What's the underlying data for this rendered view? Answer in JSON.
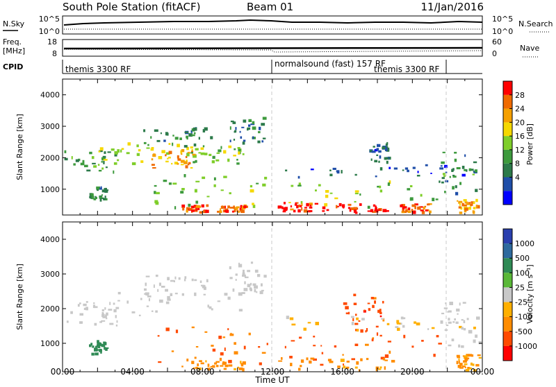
{
  "header": {
    "station": "South Pole Station (fitACF)",
    "beam": "Beam 01",
    "date": "11/Jan/2016"
  },
  "noise_panel": {
    "left_label": "N.Sky",
    "left_ticks": [
      "10^5",
      "10^0"
    ],
    "right_ticks": [
      "10^5",
      "10^0"
    ],
    "right_label": "N.Search"
  },
  "freq_panel": {
    "left_label_line1": "Freq.",
    "left_label_line2": "[MHz]",
    "left_ticks": [
      "18",
      "8"
    ],
    "right_ticks": [
      "60",
      "0"
    ],
    "right_label": "Nave"
  },
  "cpid": {
    "label": "CPID",
    "segments": [
      "themis 3300 RF",
      "normalsound (fast) 157 RF",
      "themis 3300 RF"
    ]
  },
  "x_axis": {
    "label": "Time UT",
    "ticks": [
      "00:00",
      "04:00",
      "08:00",
      "12:00",
      "16:00",
      "20:00",
      "00:00"
    ]
  },
  "power_scale": {
    "label": "Power [dB]",
    "ticks": [
      "28",
      "24",
      "20",
      "16",
      "12",
      "8",
      "4"
    ],
    "colors": [
      "#0000ff",
      "#1f4ea8",
      "#2c7a4a",
      "#3d9a3d",
      "#7fce2a",
      "#f5d800",
      "#f5a000",
      "#f06a00",
      "#ff0000"
    ]
  },
  "velocity_scale": {
    "label": "Velocity [m s⁻¹]",
    "ticks": [
      "1000",
      "500",
      "100",
      "25",
      "-25",
      "-100",
      "-500",
      "-1000"
    ],
    "colors": [
      "#2a3fae",
      "#2e6a9e",
      "#2f8a55",
      "#5ab838",
      "#c8c8c8",
      "#ffb000",
      "#ff8c00",
      "#ff4a00",
      "#ff0000"
    ]
  },
  "chart_data": [
    {
      "type": "heatmap",
      "title": "Power",
      "xlabel": "Time UT",
      "ylabel": "Slant Range [km]",
      "y_ticks": [
        1000,
        2000,
        3000,
        4000
      ],
      "ylim": [
        180,
        4500
      ],
      "xlim_hours": [
        0,
        24
      ],
      "colorbar_label": "Power [dB]",
      "colorbar_range": [
        0,
        30
      ],
      "regions": [
        {
          "t0": 0.1,
          "t1": 3.2,
          "r0": 1500,
          "r1": 2300,
          "v": 12
        },
        {
          "t0": 2.0,
          "t1": 7.5,
          "r0": 1800,
          "r1": 2500,
          "v": 16
        },
        {
          "t0": 5.0,
          "t1": 7.5,
          "r0": 1700,
          "r1": 2300,
          "v": 22
        },
        {
          "t0": 7.0,
          "t1": 10.5,
          "r0": 1800,
          "r1": 2400,
          "v": 14
        },
        {
          "t0": 4.5,
          "t1": 8.5,
          "r0": 2400,
          "r1": 3000,
          "v": 10
        },
        {
          "t0": 9.5,
          "t1": 11.5,
          "r0": 2500,
          "r1": 3400,
          "v": 8
        },
        {
          "t0": 1.5,
          "t1": 2.5,
          "r0": 700,
          "r1": 1100,
          "v": 8
        },
        {
          "t0": 5.0,
          "t1": 11.8,
          "r0": 400,
          "r1": 1500,
          "v": 14
        },
        {
          "t0": 6.8,
          "t1": 8.2,
          "r0": 300,
          "r1": 520,
          "v": 26
        },
        {
          "t0": 8.8,
          "t1": 10.4,
          "r0": 300,
          "r1": 520,
          "v": 26
        },
        {
          "t0": 12.0,
          "t1": 21.5,
          "r0": 400,
          "r1": 1300,
          "v": 14
        },
        {
          "t0": 12.3,
          "t1": 14.5,
          "r0": 300,
          "r1": 600,
          "v": 26
        },
        {
          "t0": 14.8,
          "t1": 18.8,
          "r0": 280,
          "r1": 560,
          "v": 28
        },
        {
          "t0": 19.2,
          "t1": 21.0,
          "r0": 300,
          "r1": 560,
          "v": 26
        },
        {
          "t0": 12.5,
          "t1": 23.8,
          "r0": 1400,
          "r1": 1800,
          "v": 6
        },
        {
          "t0": 17.5,
          "t1": 18.6,
          "r0": 1900,
          "r1": 2500,
          "v": 6
        },
        {
          "t0": 21.5,
          "t1": 23.8,
          "r0": 900,
          "r1": 2200,
          "v": 10
        },
        {
          "t0": 22.5,
          "t1": 23.9,
          "r0": 250,
          "r1": 700,
          "v": 22
        }
      ]
    },
    {
      "type": "heatmap",
      "title": "Velocity",
      "xlabel": "Time UT",
      "ylabel": "Slant Range [km]",
      "y_ticks": [
        1000,
        2000,
        3000,
        4000
      ],
      "ylim": [
        180,
        4500
      ],
      "xlim_hours": [
        0,
        24
      ],
      "colorbar_label": "Velocity [m s⁻¹]",
      "colorbar_range": [
        -1000,
        1000
      ],
      "regions": [
        {
          "t0": 0.1,
          "t1": 3.2,
          "r0": 1500,
          "r1": 2300,
          "v": 0
        },
        {
          "t0": 2.0,
          "t1": 10.5,
          "r0": 1800,
          "r1": 2500,
          "v": 0
        },
        {
          "t0": 4.5,
          "t1": 8.5,
          "r0": 2400,
          "r1": 3000,
          "v": 0
        },
        {
          "t0": 9.5,
          "t1": 11.5,
          "r0": 2500,
          "r1": 3400,
          "v": 0
        },
        {
          "t0": 1.5,
          "t1": 2.5,
          "r0": 700,
          "r1": 1100,
          "v": 150
        },
        {
          "t0": 5.0,
          "t1": 11.8,
          "r0": 400,
          "r1": 1500,
          "v": -300
        },
        {
          "t0": 6.8,
          "t1": 10.4,
          "r0": 280,
          "r1": 520,
          "v": -100
        },
        {
          "t0": 12.0,
          "t1": 21.5,
          "r0": 400,
          "r1": 1300,
          "v": -400
        },
        {
          "t0": 12.3,
          "t1": 18.8,
          "r0": 250,
          "r1": 600,
          "v": -80
        },
        {
          "t0": 16.0,
          "t1": 18.5,
          "r0": 1300,
          "r1": 2500,
          "v": -500
        },
        {
          "t0": 12.5,
          "t1": 23.8,
          "r0": 1400,
          "r1": 1800,
          "v": -30
        },
        {
          "t0": 21.5,
          "t1": 23.8,
          "r0": 900,
          "r1": 2200,
          "v": 0
        },
        {
          "t0": 22.5,
          "t1": 23.9,
          "r0": 250,
          "r1": 700,
          "v": -80
        }
      ]
    }
  ]
}
